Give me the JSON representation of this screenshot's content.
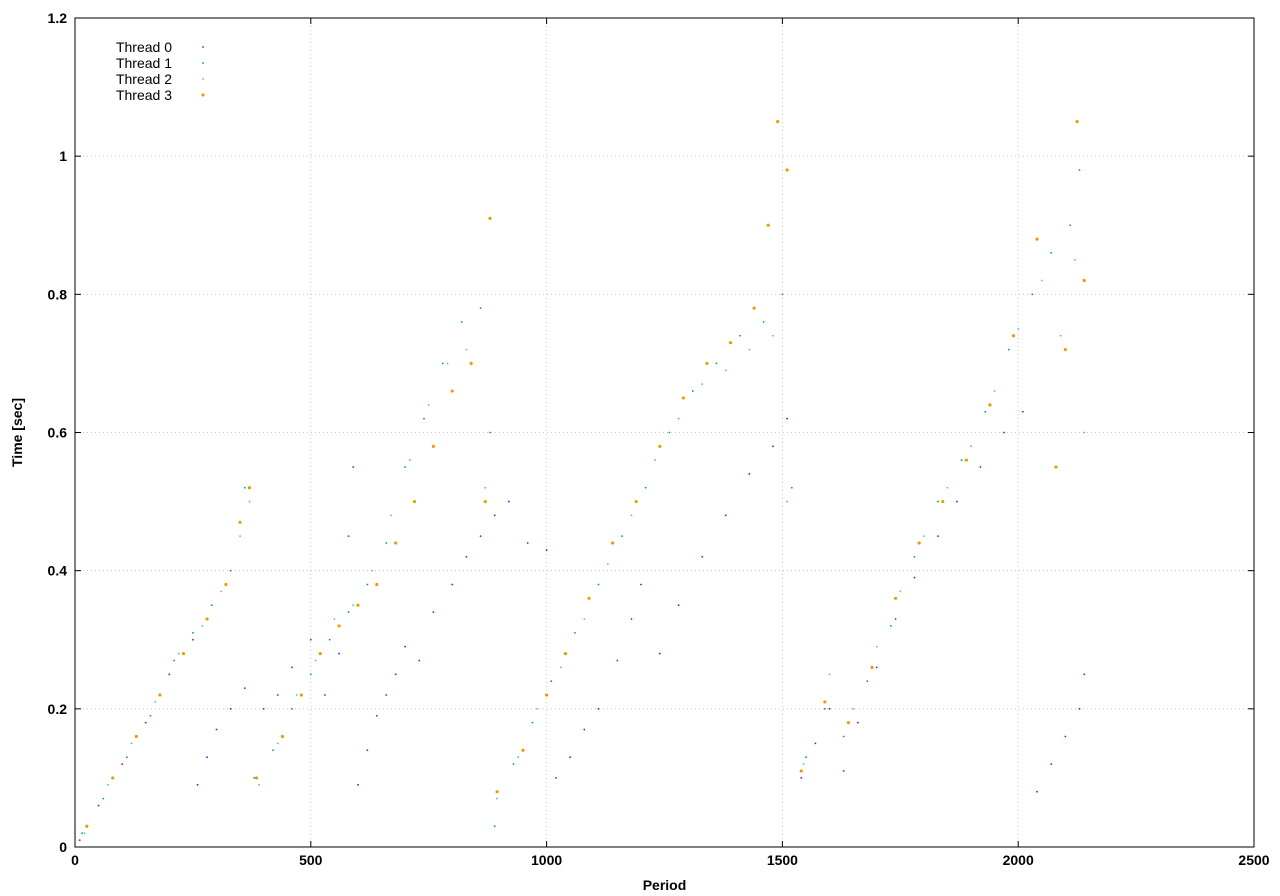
{
  "chart_data": {
    "type": "scatter",
    "title": "",
    "xlabel": "Period",
    "ylabel": "Time [sec]",
    "xlim": [
      0,
      2500
    ],
    "ylim": [
      0,
      1.2
    ],
    "x_ticks": [
      0,
      500,
      1000,
      1500,
      2000,
      2500
    ],
    "y_ticks": [
      0,
      0.2,
      0.4,
      0.6,
      0.8,
      1,
      1.2
    ],
    "x_tick_labels": [
      "0",
      "500",
      "1000",
      "1500",
      "2000",
      "2500"
    ],
    "y_tick_labels": [
      "0",
      "0.2",
      "0.4",
      "0.6",
      "0.8",
      "1",
      "1.2"
    ],
    "grid": true,
    "legend_position": "top-left",
    "series": [
      {
        "name": "Thread 0",
        "color": "#9400d3",
        "marker": "dot-small",
        "points": [
          [
            10,
            0.01
          ],
          [
            50,
            0.06
          ],
          [
            100,
            0.12
          ],
          [
            150,
            0.18
          ],
          [
            200,
            0.25
          ],
          [
            250,
            0.3
          ],
          [
            260,
            0.09
          ],
          [
            280,
            0.13
          ],
          [
            300,
            0.17
          ],
          [
            330,
            0.2
          ],
          [
            360,
            0.23
          ],
          [
            400,
            0.2
          ],
          [
            430,
            0.22
          ],
          [
            460,
            0.26
          ],
          [
            500,
            0.3
          ],
          [
            530,
            0.22
          ],
          [
            560,
            0.28
          ],
          [
            580,
            0.45
          ],
          [
            590,
            0.55
          ],
          [
            600,
            0.09
          ],
          [
            620,
            0.14
          ],
          [
            640,
            0.19
          ],
          [
            660,
            0.22
          ],
          [
            680,
            0.25
          ],
          [
            700,
            0.29
          ],
          [
            730,
            0.27
          ],
          [
            760,
            0.34
          ],
          [
            800,
            0.38
          ],
          [
            830,
            0.42
          ],
          [
            860,
            0.45
          ],
          [
            890,
            0.48
          ],
          [
            920,
            0.5
          ],
          [
            960,
            0.44
          ],
          [
            1000,
            0.43
          ],
          [
            1020,
            0.1
          ],
          [
            1050,
            0.13
          ],
          [
            1080,
            0.17
          ],
          [
            1110,
            0.2
          ],
          [
            1150,
            0.27
          ],
          [
            1180,
            0.33
          ],
          [
            1200,
            0.38
          ],
          [
            1240,
            0.28
          ],
          [
            1280,
            0.35
          ],
          [
            1330,
            0.42
          ],
          [
            1380,
            0.48
          ],
          [
            1430,
            0.54
          ],
          [
            1480,
            0.58
          ],
          [
            1510,
            0.62
          ],
          [
            1540,
            0.1
          ],
          [
            1570,
            0.15
          ],
          [
            1600,
            0.2
          ],
          [
            1630,
            0.11
          ],
          [
            1660,
            0.18
          ],
          [
            1700,
            0.26
          ],
          [
            1740,
            0.33
          ],
          [
            1780,
            0.39
          ],
          [
            1830,
            0.45
          ],
          [
            1870,
            0.5
          ],
          [
            1920,
            0.55
          ],
          [
            1970,
            0.6
          ],
          [
            2010,
            0.63
          ],
          [
            2040,
            0.08
          ],
          [
            2070,
            0.12
          ],
          [
            2100,
            0.16
          ],
          [
            2130,
            0.2
          ],
          [
            2140,
            0.25
          ]
        ]
      },
      {
        "name": "Thread 1",
        "color": "#009e73",
        "marker": "dot-small",
        "points": [
          [
            15,
            0.02
          ],
          [
            60,
            0.07
          ],
          [
            110,
            0.13
          ],
          [
            160,
            0.19
          ],
          [
            210,
            0.27
          ],
          [
            250,
            0.31
          ],
          [
            290,
            0.35
          ],
          [
            330,
            0.4
          ],
          [
            360,
            0.52
          ],
          [
            380,
            0.1
          ],
          [
            420,
            0.14
          ],
          [
            460,
            0.2
          ],
          [
            500,
            0.25
          ],
          [
            540,
            0.3
          ],
          [
            580,
            0.34
          ],
          [
            620,
            0.38
          ],
          [
            660,
            0.44
          ],
          [
            700,
            0.55
          ],
          [
            740,
            0.62
          ],
          [
            780,
            0.7
          ],
          [
            820,
            0.76
          ],
          [
            860,
            0.78
          ],
          [
            880,
            0.6
          ],
          [
            890,
            0.03
          ],
          [
            930,
            0.12
          ],
          [
            970,
            0.18
          ],
          [
            1010,
            0.24
          ],
          [
            1060,
            0.31
          ],
          [
            1110,
            0.38
          ],
          [
            1160,
            0.45
          ],
          [
            1210,
            0.52
          ],
          [
            1260,
            0.6
          ],
          [
            1310,
            0.66
          ],
          [
            1360,
            0.7
          ],
          [
            1410,
            0.74
          ],
          [
            1460,
            0.76
          ],
          [
            1500,
            0.8
          ],
          [
            1520,
            0.52
          ],
          [
            1550,
            0.13
          ],
          [
            1590,
            0.2
          ],
          [
            1630,
            0.16
          ],
          [
            1680,
            0.24
          ],
          [
            1730,
            0.32
          ],
          [
            1780,
            0.42
          ],
          [
            1830,
            0.5
          ],
          [
            1880,
            0.56
          ],
          [
            1930,
            0.63
          ],
          [
            1980,
            0.72
          ],
          [
            2030,
            0.8
          ],
          [
            2070,
            0.86
          ],
          [
            2110,
            0.9
          ],
          [
            2130,
            0.98
          ]
        ]
      },
      {
        "name": "Thread 2",
        "color": "#56b4e9",
        "marker": "dot-small",
        "points": [
          [
            20,
            0.02
          ],
          [
            70,
            0.09
          ],
          [
            120,
            0.15
          ],
          [
            170,
            0.21
          ],
          [
            220,
            0.28
          ],
          [
            270,
            0.32
          ],
          [
            310,
            0.37
          ],
          [
            350,
            0.45
          ],
          [
            370,
            0.5
          ],
          [
            390,
            0.09
          ],
          [
            430,
            0.15
          ],
          [
            470,
            0.22
          ],
          [
            510,
            0.27
          ],
          [
            550,
            0.33
          ],
          [
            590,
            0.35
          ],
          [
            630,
            0.4
          ],
          [
            670,
            0.48
          ],
          [
            710,
            0.56
          ],
          [
            750,
            0.64
          ],
          [
            790,
            0.7
          ],
          [
            830,
            0.72
          ],
          [
            870,
            0.52
          ],
          [
            895,
            0.07
          ],
          [
            940,
            0.13
          ],
          [
            980,
            0.2
          ],
          [
            1030,
            0.26
          ],
          [
            1080,
            0.33
          ],
          [
            1130,
            0.41
          ],
          [
            1180,
            0.48
          ],
          [
            1230,
            0.56
          ],
          [
            1280,
            0.62
          ],
          [
            1330,
            0.67
          ],
          [
            1380,
            0.69
          ],
          [
            1430,
            0.72
          ],
          [
            1480,
            0.74
          ],
          [
            1510,
            0.5
          ],
          [
            1545,
            0.12
          ],
          [
            1600,
            0.25
          ],
          [
            1650,
            0.2
          ],
          [
            1700,
            0.29
          ],
          [
            1750,
            0.37
          ],
          [
            1800,
            0.45
          ],
          [
            1850,
            0.52
          ],
          [
            1900,
            0.58
          ],
          [
            1950,
            0.66
          ],
          [
            2000,
            0.75
          ],
          [
            2050,
            0.82
          ],
          [
            2090,
            0.74
          ],
          [
            2120,
            0.85
          ],
          [
            2140,
            0.6
          ]
        ]
      },
      {
        "name": "Thread 3",
        "color": "#e69f00",
        "marker": "dot-large",
        "points": [
          [
            25,
            0.03
          ],
          [
            80,
            0.1
          ],
          [
            130,
            0.16
          ],
          [
            180,
            0.22
          ],
          [
            230,
            0.28
          ],
          [
            280,
            0.33
          ],
          [
            320,
            0.38
          ],
          [
            350,
            0.47
          ],
          [
            370,
            0.52
          ],
          [
            385,
            0.1
          ],
          [
            440,
            0.16
          ],
          [
            480,
            0.22
          ],
          [
            520,
            0.28
          ],
          [
            560,
            0.32
          ],
          [
            600,
            0.35
          ],
          [
            640,
            0.38
          ],
          [
            680,
            0.44
          ],
          [
            720,
            0.5
          ],
          [
            760,
            0.58
          ],
          [
            800,
            0.66
          ],
          [
            840,
            0.7
          ],
          [
            870,
            0.5
          ],
          [
            880,
            0.91
          ],
          [
            895,
            0.08
          ],
          [
            950,
            0.14
          ],
          [
            1000,
            0.22
          ],
          [
            1040,
            0.28
          ],
          [
            1090,
            0.36
          ],
          [
            1140,
            0.44
          ],
          [
            1190,
            0.5
          ],
          [
            1240,
            0.58
          ],
          [
            1290,
            0.65
          ],
          [
            1340,
            0.7
          ],
          [
            1390,
            0.73
          ],
          [
            1440,
            0.78
          ],
          [
            1470,
            0.9
          ],
          [
            1490,
            1.05
          ],
          [
            1510,
            0.98
          ],
          [
            1540,
            0.11
          ],
          [
            1590,
            0.21
          ],
          [
            1640,
            0.18
          ],
          [
            1690,
            0.26
          ],
          [
            1740,
            0.36
          ],
          [
            1790,
            0.44
          ],
          [
            1840,
            0.5
          ],
          [
            1890,
            0.56
          ],
          [
            1940,
            0.64
          ],
          [
            1990,
            0.74
          ],
          [
            2040,
            0.88
          ],
          [
            2080,
            0.55
          ],
          [
            2100,
            0.72
          ],
          [
            2125,
            1.05
          ],
          [
            2140,
            0.82
          ]
        ]
      }
    ]
  }
}
